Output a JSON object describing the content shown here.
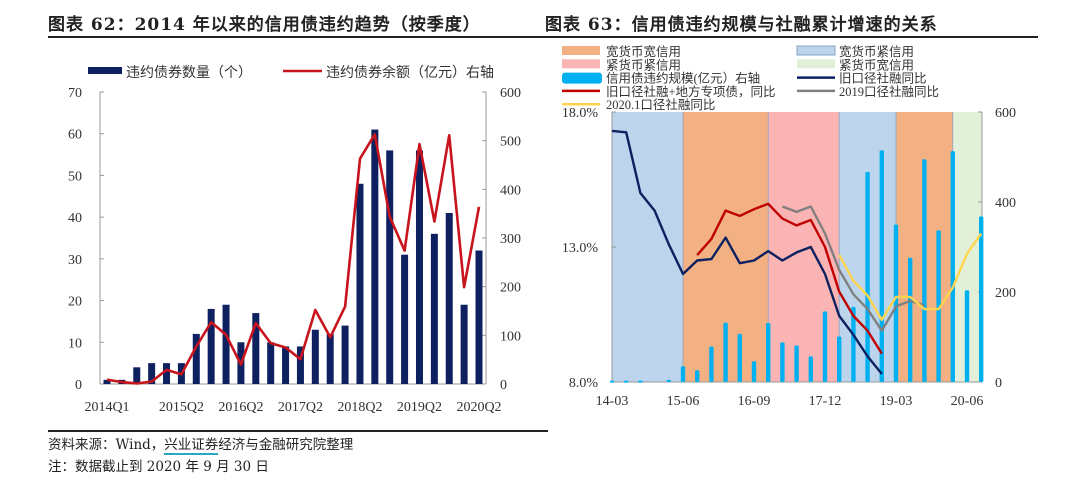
{
  "left": {
    "title": "图表 62：2014 年以来的信用债违约趋势（按季度）",
    "chart_data": {
      "type": "bar+line",
      "categories": [
        "2014Q1",
        "2014Q2",
        "2014Q3",
        "2014Q4",
        "2015Q1",
        "2015Q2",
        "2015Q3",
        "2015Q4",
        "2016Q1",
        "2016Q2",
        "2016Q3",
        "2016Q4",
        "2017Q1",
        "2017Q2",
        "2017Q3",
        "2017Q4",
        "2018Q1",
        "2018Q2",
        "2018Q3",
        "2018Q4",
        "2019Q1",
        "2019Q2",
        "2019Q3",
        "2019Q4",
        "2020Q1",
        "2020Q2"
      ],
      "tick_labels": [
        "2014Q1",
        "2015Q2",
        "2016Q2",
        "2017Q2",
        "2018Q2",
        "2019Q2",
        "2020Q2"
      ],
      "tick_label_categories": [
        "2014Q1",
        "2015Q2",
        "2016Q2",
        "2017Q2",
        "2018Q2",
        "2019Q2",
        "2020Q2"
      ],
      "series": [
        {
          "name": "违约债券数量（个）",
          "type": "bar",
          "axis": "left",
          "color": "#0d2060",
          "values": [
            1,
            1,
            4,
            5,
            5,
            5,
            12,
            18,
            19,
            10,
            17,
            10,
            9,
            9,
            13,
            12,
            14,
            48,
            61,
            56,
            31,
            56,
            36,
            41,
            19,
            32
          ]
        },
        {
          "name": "违约债券余额（亿元）右轴",
          "type": "line",
          "axis": "right",
          "color": "#c8141c",
          "values": [
            9,
            4,
            1,
            5,
            29,
            20,
            77,
            127,
            101,
            40,
            125,
            84,
            75,
            51,
            152,
            96,
            159,
            463,
            513,
            344,
            274,
            493,
            334,
            511,
            199,
            364
          ]
        }
      ],
      "ylim_left": [
        0,
        70
      ],
      "yticks_left": [
        "0",
        "10",
        "20",
        "30",
        "40",
        "50",
        "60",
        "70"
      ],
      "ylim_right": [
        0,
        600
      ],
      "yticks_right": [
        "0",
        "100",
        "200",
        "300",
        "400",
        "500",
        "600"
      ],
      "legend": "top"
    }
  },
  "right": {
    "title": "图表 63：信用债违约规模与社融累计增速的关系",
    "chart_data": {
      "type": "bar+line",
      "x": [
        "14-03",
        "14-06",
        "14-09",
        "14-12",
        "15-03",
        "15-06",
        "15-09",
        "15-12",
        "16-03",
        "16-06",
        "16-09",
        "16-12",
        "17-03",
        "17-06",
        "17-09",
        "17-12",
        "18-03",
        "18-06",
        "18-09",
        "18-12",
        "19-03",
        "19-06",
        "19-09",
        "19-12",
        "20-03",
        "20-06",
        "20-09"
      ],
      "tick_labels": [
        "14-03",
        "15-06",
        "16-09",
        "17-12",
        "19-03",
        "20-06"
      ],
      "ylim_left": [
        8,
        18
      ],
      "yticks_left": [
        "8.0%",
        "13.0%",
        "18.0%"
      ],
      "ylim_right": [
        0,
        600
      ],
      "yticks_right": [
        "0",
        "200",
        "400",
        "600"
      ],
      "regimes": [
        {
          "name": "宽货币紧信用",
          "from": "14-03",
          "to": "15-06",
          "color": "#bcd5ec"
        },
        {
          "name": "宽货币宽信用",
          "from": "15-06",
          "to": "16-12",
          "color": "#f2b083"
        },
        {
          "name": "紧货币紧信用",
          "from": "16-12",
          "to": "18-03",
          "color": "#fbb4b4"
        },
        {
          "name": "宽货币紧信用",
          "from": "18-03",
          "to": "19-03",
          "color": "#bcd5ec"
        },
        {
          "name": "宽货币宽信用",
          "from": "19-03",
          "to": "20-03",
          "color": "#f2b083"
        },
        {
          "name": "紧货币宽信用",
          "from": "20-03",
          "to": "20-09",
          "color": "#e2efd9"
        }
      ],
      "series": [
        {
          "name": "信用债违约规模(亿元）右轴",
          "type": "bar",
          "axis": "right",
          "color": "#00b0f0",
          "values": [
            3,
            3,
            3,
            null,
            5,
            35,
            26,
            79,
            132,
            107,
            46,
            131,
            88,
            81,
            57,
            157,
            101,
            167,
            467,
            515,
            350,
            276,
            495,
            337,
            513,
            204,
            368
          ]
        },
        {
          "name": "旧口径社融同比",
          "type": "line",
          "axis": "left",
          "color": "#0d2060",
          "values": [
            17.3,
            17.25,
            15.0,
            14.35,
            13.1,
            12.0,
            12.5,
            12.55,
            13.35,
            12.4,
            12.5,
            12.85,
            12.5,
            12.8,
            13.0,
            12.0,
            10.45,
            9.75,
            8.95,
            8.3,
            null,
            null,
            null,
            null,
            null,
            null,
            null
          ]
        },
        {
          "name": "旧口径社融+地方专项债，同比",
          "type": "line",
          "axis": "left",
          "color": "#c00000",
          "values": [
            null,
            null,
            null,
            null,
            null,
            null,
            12.7,
            13.3,
            14.35,
            14.15,
            14.4,
            14.6,
            14.05,
            13.8,
            14.0,
            13.0,
            11.35,
            10.45,
            9.9,
            9.05,
            null,
            null,
            null,
            null,
            null,
            null,
            null
          ]
        },
        {
          "name": "2019口径社融同比",
          "type": "line",
          "axis": "left",
          "color": "#808080",
          "values": [
            null,
            null,
            null,
            null,
            null,
            null,
            null,
            null,
            null,
            null,
            null,
            null,
            14.5,
            14.3,
            14.5,
            13.5,
            12.15,
            11.25,
            10.7,
            9.9,
            10.8,
            11.0,
            10.85,
            null,
            null,
            null,
            null
          ]
        },
        {
          "name": "2020.1口径社融同比",
          "type": "line",
          "axis": "left",
          "color": "#ffd54f",
          "values": [
            null,
            null,
            null,
            null,
            null,
            null,
            null,
            null,
            null,
            null,
            null,
            null,
            null,
            null,
            null,
            null,
            12.7,
            11.75,
            11.2,
            10.3,
            11.15,
            11.15,
            10.7,
            10.7,
            11.5,
            12.75,
            13.5
          ]
        }
      ],
      "legend": "top"
    }
  },
  "footer": {
    "source_prefix": "资料来源：Wind，",
    "source_link": "兴业证券",
    "source_suffix": "经济与金融研究院整理",
    "note": "注：数据截止到 2020 年 9 月 30 日"
  }
}
